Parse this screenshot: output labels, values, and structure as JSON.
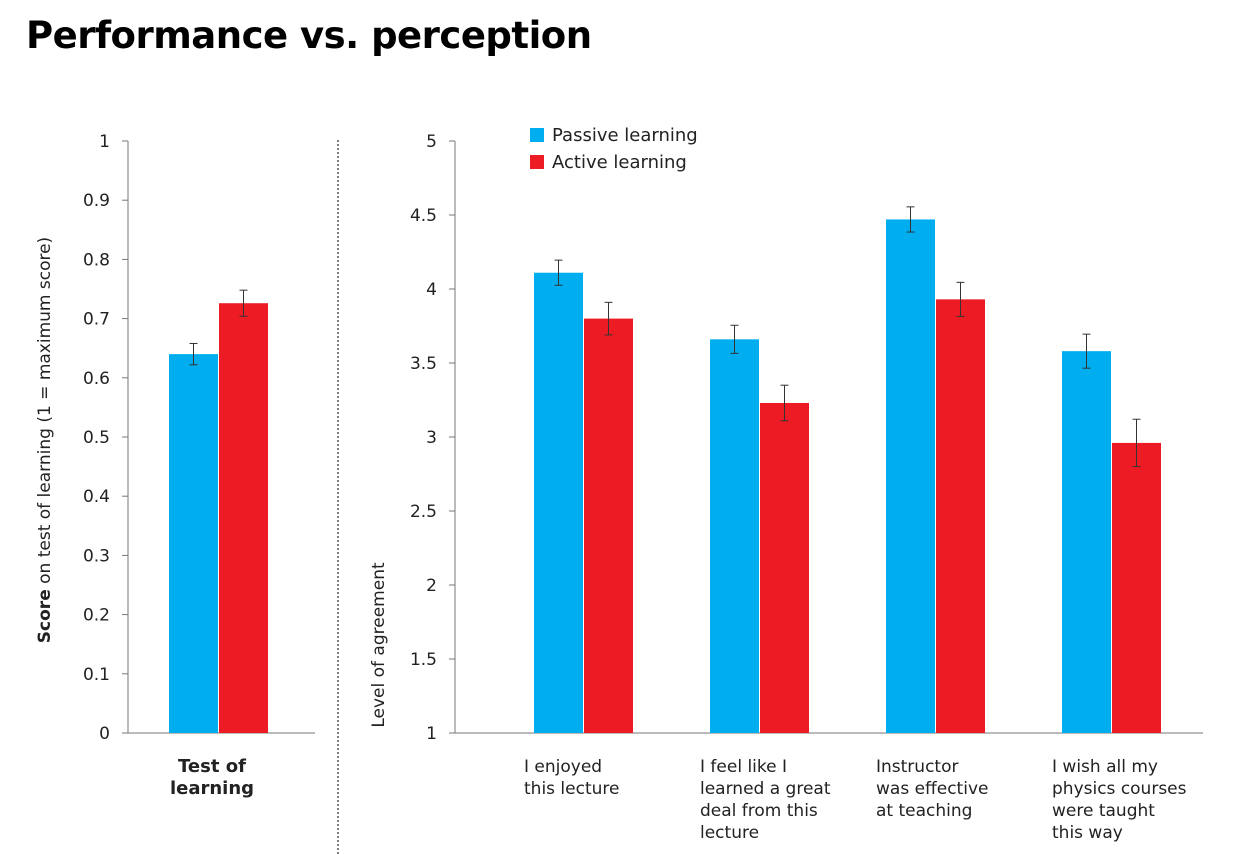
{
  "title": "Performance vs. perception",
  "colors": {
    "passive": "#00AEEF",
    "active": "#ED1C24"
  },
  "chart_data": [
    {
      "type": "bar",
      "ylabel_bold": "Score",
      "ylabel_rest": " on test of learning  (1 = maximum score)",
      "ylim": [
        0,
        1
      ],
      "yticks": [
        "0",
        "0.1",
        "0.2",
        "0.3",
        "0.4",
        "0.5",
        "0.6",
        "0.7",
        "0.8",
        "0.9",
        "1"
      ],
      "categories": [
        [
          "Test of",
          "learning"
        ]
      ],
      "series": [
        {
          "key": "passive",
          "values": [
            0.64
          ],
          "errors": [
            0.018
          ]
        },
        {
          "key": "active",
          "values": [
            0.726
          ],
          "errors": [
            0.022
          ]
        }
      ],
      "grid": false
    },
    {
      "type": "bar",
      "ylabel": "Level of agreement",
      "ylim": [
        1,
        5
      ],
      "yticks": [
        "1",
        "1.5",
        "2",
        "2.5",
        "3",
        "3.5",
        "4",
        "4.5",
        "5"
      ],
      "categories": [
        [
          "I enjoyed",
          "this lecture"
        ],
        [
          "I feel like I",
          "learned a great",
          "deal from this",
          "lecture"
        ],
        [
          "Instructor",
          "was effective",
          "at teaching"
        ],
        [
          "I wish all my",
          "physics courses",
          "were taught",
          "this way"
        ]
      ],
      "series": [
        {
          "key": "passive",
          "name": "Passive learning",
          "values": [
            4.11,
            3.66,
            4.47,
            3.58
          ],
          "errors": [
            0.085,
            0.095,
            0.085,
            0.115
          ]
        },
        {
          "key": "active",
          "name": "Active learning",
          "values": [
            3.8,
            3.23,
            3.93,
            2.96
          ],
          "errors": [
            0.11,
            0.12,
            0.115,
            0.16
          ]
        }
      ],
      "legend": "top-left",
      "grid": false
    }
  ]
}
